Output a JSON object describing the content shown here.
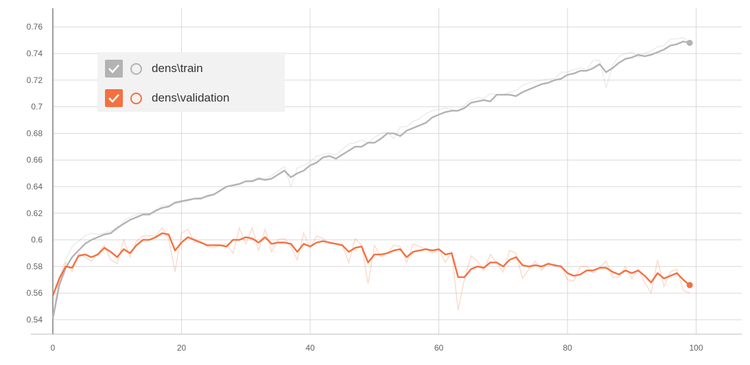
{
  "chart_data": {
    "type": "line",
    "title": "",
    "xlabel": "",
    "ylabel": "",
    "xlim": [
      -2,
      107
    ],
    "ylim": [
      0.532,
      0.766
    ],
    "x_ticks": [
      0,
      20,
      40,
      60,
      80,
      100
    ],
    "y_ticks": [
      0.54,
      0.56,
      0.58,
      0.6,
      0.62,
      0.64,
      0.66,
      0.68,
      0.7,
      0.72,
      0.74,
      0.76
    ],
    "x_tick_labels": [
      "0",
      "20",
      "40",
      "60",
      "80",
      "100"
    ],
    "y_tick_labels": [
      "0.54",
      "0.56",
      "0.58",
      "0.6",
      "0.62",
      "0.64",
      "0.66",
      "0.68",
      "0.7",
      "0.72",
      "0.74",
      "0.76"
    ],
    "grid": true,
    "legend_position": "top-left",
    "series": [
      {
        "name": "dens\\train",
        "color": "#b3b3b3",
        "checked": true,
        "raw": [
          0.542,
          0.572,
          0.585,
          0.595,
          0.599,
          0.603,
          0.605,
          0.604,
          0.605,
          0.607,
          0.607,
          0.614,
          0.617,
          0.619,
          0.62,
          0.62,
          0.621,
          0.626,
          0.626,
          0.627,
          0.628,
          0.629,
          0.631,
          0.632,
          0.632,
          0.634,
          0.637,
          0.64,
          0.641,
          0.642,
          0.644,
          0.645,
          0.647,
          0.646,
          0.648,
          0.652,
          0.655,
          0.64,
          0.654,
          0.656,
          0.659,
          0.663,
          0.664,
          0.665,
          0.664,
          0.668,
          0.672,
          0.673,
          0.675,
          0.673,
          0.677,
          0.68,
          0.681,
          0.676,
          0.685,
          0.685,
          0.689,
          0.691,
          0.695,
          0.697,
          0.698,
          0.699,
          0.698,
          0.697,
          0.701,
          0.705,
          0.707,
          0.706,
          0.71,
          0.709,
          0.709,
          0.711,
          0.712,
          0.716,
          0.718,
          0.719,
          0.72,
          0.721,
          0.721,
          0.726,
          0.726,
          0.728,
          0.729,
          0.728,
          0.735,
          0.735,
          0.714,
          0.731,
          0.738,
          0.74,
          0.741,
          0.737,
          0.74,
          0.742,
          0.745,
          0.746,
          0.751,
          0.751,
          0.752,
          0.748
        ],
        "smoothed": [
          0.541,
          0.566,
          0.579,
          0.587,
          0.592,
          0.597,
          0.6,
          0.602,
          0.604,
          0.605,
          0.609,
          0.612,
          0.615,
          0.617,
          0.619,
          0.619,
          0.622,
          0.624,
          0.625,
          0.628,
          0.629,
          0.63,
          0.631,
          0.631,
          0.633,
          0.634,
          0.637,
          0.64,
          0.641,
          0.642,
          0.644,
          0.644,
          0.646,
          0.645,
          0.646,
          0.649,
          0.652,
          0.647,
          0.65,
          0.652,
          0.656,
          0.658,
          0.662,
          0.663,
          0.661,
          0.664,
          0.667,
          0.67,
          0.67,
          0.673,
          0.673,
          0.676,
          0.68,
          0.68,
          0.678,
          0.682,
          0.684,
          0.686,
          0.688,
          0.692,
          0.694,
          0.696,
          0.697,
          0.697,
          0.699,
          0.703,
          0.704,
          0.705,
          0.704,
          0.709,
          0.709,
          0.709,
          0.708,
          0.711,
          0.713,
          0.715,
          0.717,
          0.718,
          0.72,
          0.721,
          0.724,
          0.725,
          0.727,
          0.727,
          0.729,
          0.732,
          0.726,
          0.729,
          0.733,
          0.736,
          0.737,
          0.739,
          0.738,
          0.739,
          0.741,
          0.743,
          0.746,
          0.747,
          0.749,
          0.748
        ]
      },
      {
        "name": "dens\\validation",
        "color": "#f4703f",
        "checked": true,
        "raw": [
          0.559,
          0.568,
          0.583,
          0.576,
          0.59,
          0.587,
          0.584,
          0.59,
          0.596,
          0.585,
          0.582,
          0.6,
          0.587,
          0.599,
          0.603,
          0.603,
          0.603,
          0.609,
          0.601,
          0.576,
          0.605,
          0.608,
          0.598,
          0.599,
          0.595,
          0.594,
          0.596,
          0.597,
          0.59,
          0.609,
          0.597,
          0.609,
          0.592,
          0.608,
          0.591,
          0.6,
          0.601,
          0.595,
          0.585,
          0.605,
          0.594,
          0.603,
          0.601,
          0.597,
          0.597,
          0.596,
          0.583,
          0.601,
          0.596,
          0.567,
          0.596,
          0.587,
          0.59,
          0.596,
          0.595,
          0.583,
          0.597,
          0.595,
          0.593,
          0.59,
          0.593,
          0.583,
          0.591,
          0.547,
          0.571,
          0.588,
          0.584,
          0.577,
          0.589,
          0.583,
          0.576,
          0.592,
          0.59,
          0.571,
          0.578,
          0.584,
          0.577,
          0.583,
          0.58,
          0.581,
          0.57,
          0.569,
          0.58,
          0.58,
          0.575,
          0.579,
          0.584,
          0.572,
          0.572,
          0.58,
          0.571,
          0.578,
          0.568,
          0.56,
          0.585,
          0.565,
          0.576,
          0.578,
          0.562,
          0.56
        ],
        "smoothed": [
          0.558,
          0.571,
          0.58,
          0.579,
          0.588,
          0.589,
          0.587,
          0.589,
          0.594,
          0.591,
          0.587,
          0.593,
          0.59,
          0.596,
          0.6,
          0.6,
          0.602,
          0.605,
          0.604,
          0.592,
          0.598,
          0.602,
          0.6,
          0.598,
          0.596,
          0.596,
          0.596,
          0.595,
          0.6,
          0.6,
          0.602,
          0.601,
          0.598,
          0.602,
          0.597,
          0.598,
          0.598,
          0.597,
          0.591,
          0.597,
          0.595,
          0.598,
          0.599,
          0.598,
          0.597,
          0.596,
          0.591,
          0.594,
          0.595,
          0.583,
          0.589,
          0.589,
          0.59,
          0.592,
          0.593,
          0.587,
          0.591,
          0.592,
          0.593,
          0.592,
          0.593,
          0.589,
          0.59,
          0.572,
          0.572,
          0.578,
          0.58,
          0.579,
          0.583,
          0.583,
          0.58,
          0.585,
          0.587,
          0.581,
          0.58,
          0.581,
          0.58,
          0.582,
          0.581,
          0.58,
          0.575,
          0.573,
          0.574,
          0.577,
          0.577,
          0.579,
          0.579,
          0.576,
          0.574,
          0.577,
          0.575,
          0.577,
          0.573,
          0.568,
          0.575,
          0.571,
          0.573,
          0.575,
          0.57,
          0.566
        ]
      }
    ]
  },
  "legend": {
    "items": [
      {
        "label": "dens\\train",
        "color": "#b3b3b3",
        "checked": true,
        "icon": "check-icon",
        "marker": "ring-icon"
      },
      {
        "label": "dens\\validation",
        "color": "#f4703f",
        "checked": true,
        "icon": "check-icon",
        "marker": "ring-icon"
      }
    ]
  }
}
